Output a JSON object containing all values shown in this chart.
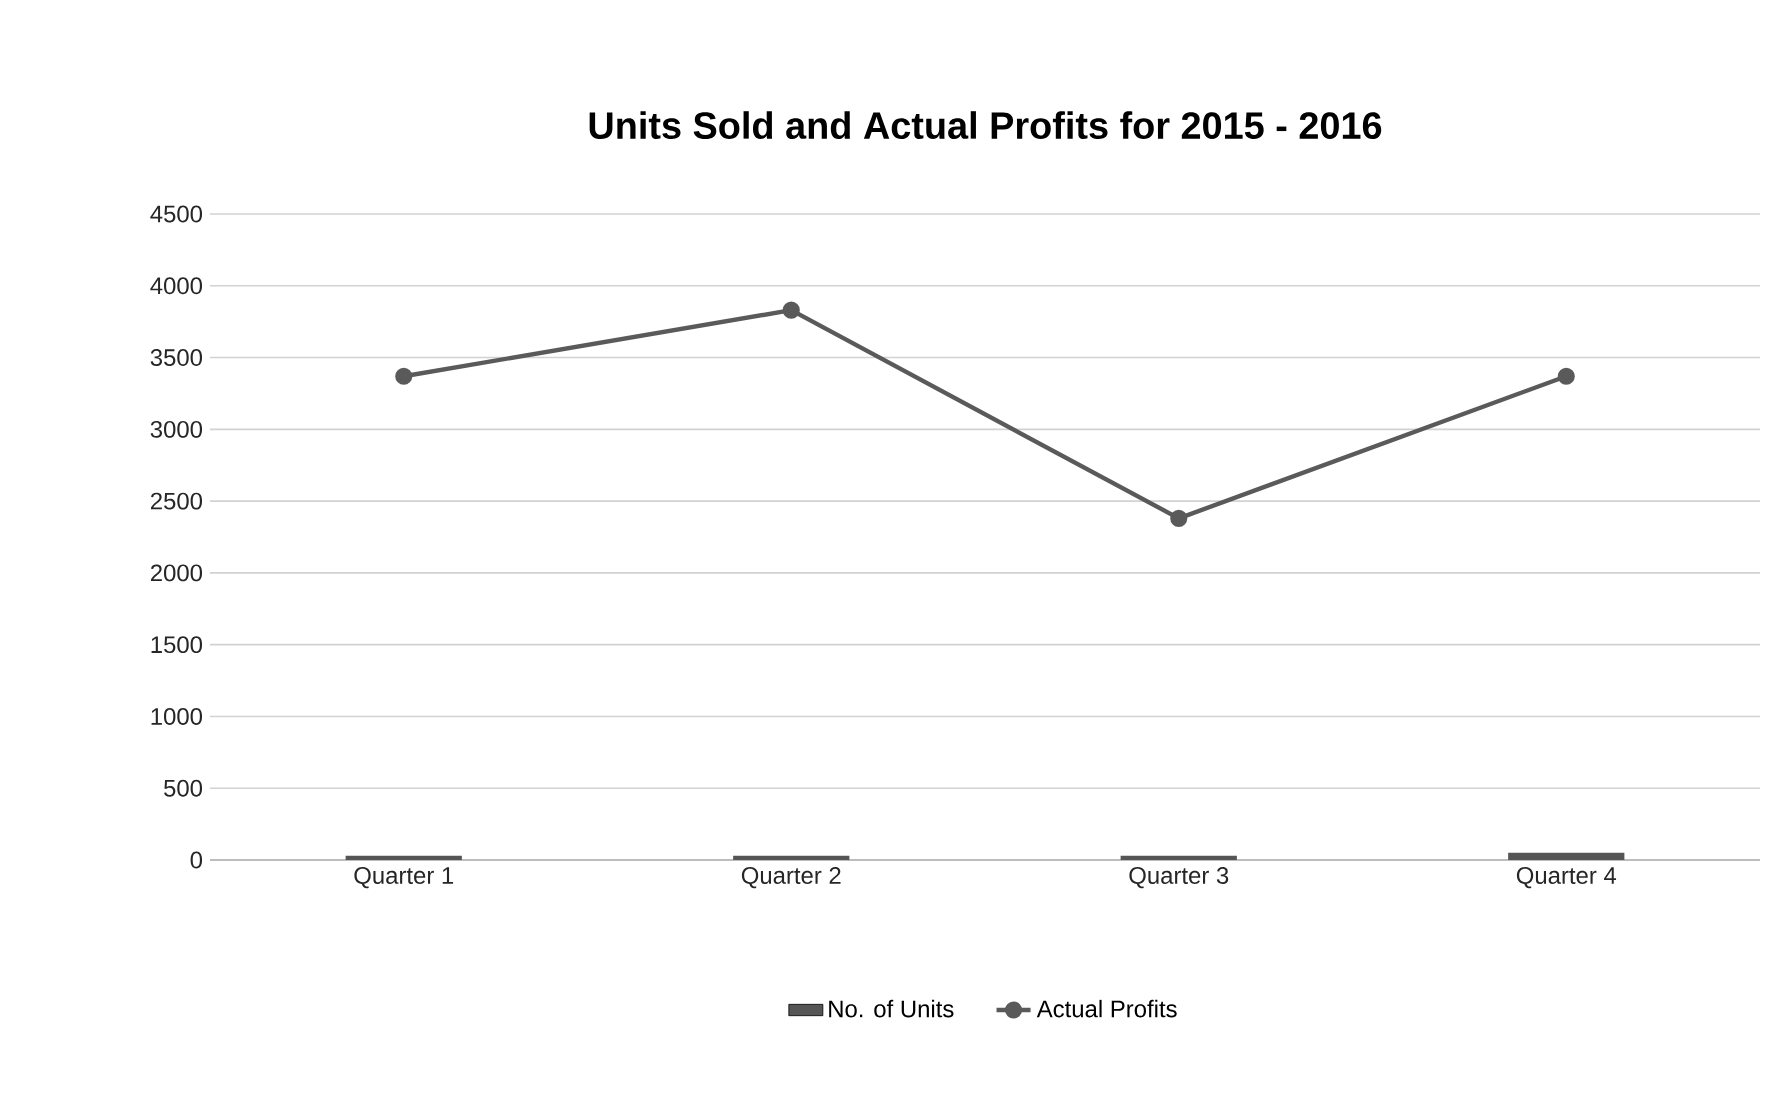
{
  "chart_data": {
    "type": "bar",
    "title": "Units Sold and Actual Profits for 2015 - 2016",
    "categories": [
      "Quarter 1",
      "Quarter 2",
      "Quarter 3",
      "Quarter 4"
    ],
    "series": [
      {
        "name": "No. of Units",
        "color": "#555555",
        "values": [
          30,
          30,
          30,
          50
        ]
      },
      {
        "name": "Actual Profits",
        "type": "line",
        "color": "#5a5a5a",
        "values": [
          3370,
          3830,
          2380,
          3370
        ],
        "marker": "circle"
      }
    ],
    "ylim": [
      0,
      4500
    ],
    "yticks": [
      0,
      500,
      1000,
      1500,
      2000,
      2500,
      3000,
      3500,
      4000,
      4500
    ],
    "grid": "y",
    "legend": "bottom"
  }
}
